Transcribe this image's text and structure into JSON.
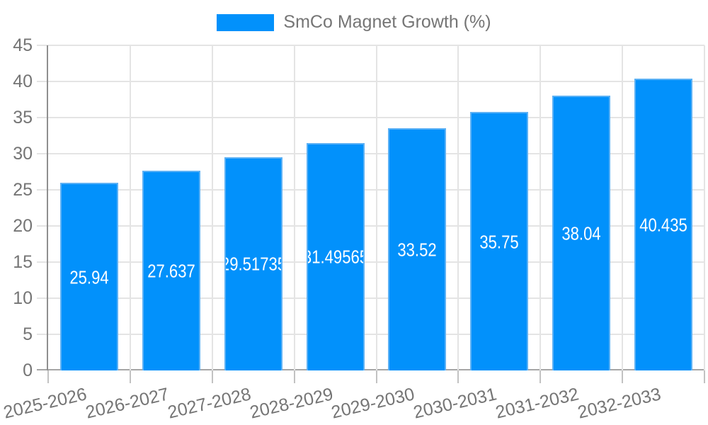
{
  "chart_data": {
    "type": "bar",
    "title": "",
    "legend_position": "top",
    "categories": [
      "2025-2026",
      "2026-2027",
      "2027-2028",
      "2028-2029",
      "2029-2030",
      "2030-2031",
      "2031-2032",
      "2032-2033"
    ],
    "series": [
      {
        "name": "SmCo Magnet Growth (%)",
        "values": [
          25.94,
          27.637,
          29.51735,
          31.49565,
          33.52,
          35.75,
          38.04,
          40.435
        ]
      }
    ],
    "bar_value_labels": [
      "25.94",
      "27.637",
      "29.51735",
      "31.49565",
      "33.52",
      "35.75",
      "38.04",
      "40.435"
    ],
    "xlabel": "",
    "ylabel": "",
    "ylim": [
      0,
      45
    ],
    "yticks": [
      0,
      5,
      10,
      15,
      20,
      25,
      30,
      35,
      40,
      45
    ],
    "grid": true,
    "x_tick_rotation_deg": -13,
    "colors": {
      "bar_fill": "#0291fb",
      "bar_border": "#5cb1f5",
      "bar_label_text": "#ffffff",
      "axis_text": "#757575",
      "gridline": "#e4e4e4",
      "y_axis_line": "#8f8f8f",
      "zero_line": "#a6a6a6",
      "tick_mark": "#c2c2c2"
    }
  }
}
